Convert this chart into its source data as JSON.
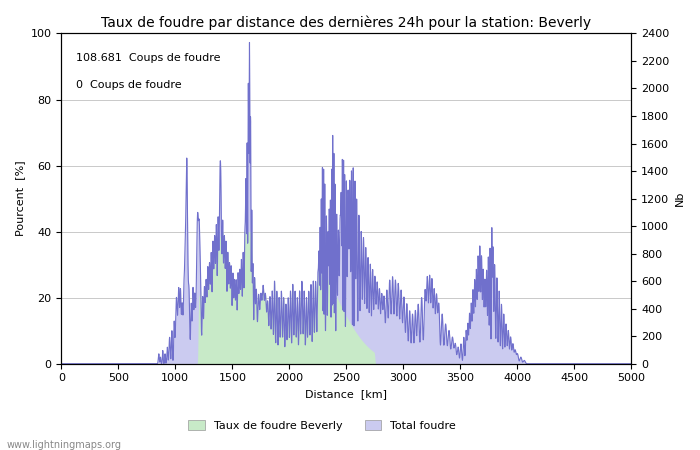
{
  "title": "Taux de foudre par distance des dernières 24h pour la station: Beverly",
  "xlabel": "Distance  [km]",
  "ylabel_left": "Pourcent  [%]",
  "ylabel_right": "Nb",
  "annotation_line1": "108.681  Coups de foudre",
  "annotation_line2": "0  Coups de foudre",
  "legend_label1": "Taux de foudre Beverly",
  "legend_label2": "Total foudre",
  "watermark": "www.lightningmaps.org",
  "xlim": [
    0,
    5000
  ],
  "ylim_left": [
    0,
    100
  ],
  "ylim_right": [
    0,
    2400
  ],
  "xticks": [
    0,
    500,
    1000,
    1500,
    2000,
    2500,
    3000,
    3500,
    4000,
    4500,
    5000
  ],
  "yticks_left": [
    0,
    20,
    40,
    60,
    80,
    100
  ],
  "yticks_right": [
    0,
    200,
    400,
    600,
    800,
    1000,
    1200,
    1400,
    1600,
    1800,
    2000,
    2200,
    2400
  ],
  "fill_color_total": "#cbcbf0",
  "fill_color_beverly": "#c8eac8",
  "line_color": "#7070cc",
  "line_width": 0.8,
  "background_color": "#ffffff",
  "grid_color": "#c0c0c0",
  "title_fontsize": 10,
  "axis_fontsize": 8,
  "tick_fontsize": 8,
  "annotation_fontsize": 8
}
